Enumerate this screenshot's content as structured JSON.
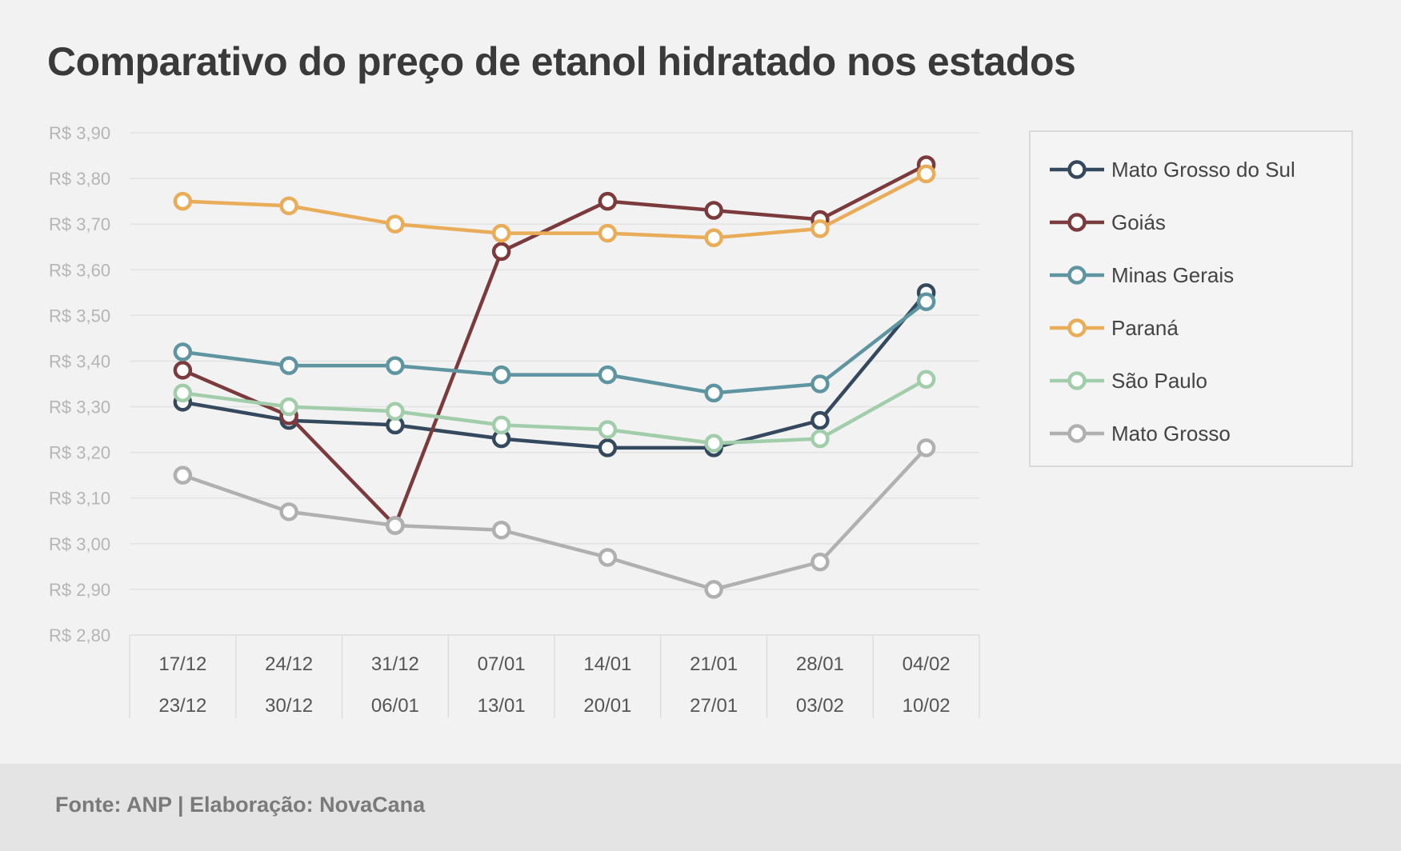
{
  "chart_data": {
    "type": "line",
    "title": "Comparativo do preço de etanol hidratado nos estados",
    "xlabel": "",
    "ylabel": "",
    "categories": [
      [
        "17/12",
        "23/12"
      ],
      [
        "24/12",
        "30/12"
      ],
      [
        "31/12",
        "06/01"
      ],
      [
        "07/01",
        "13/01"
      ],
      [
        "14/01",
        "20/01"
      ],
      [
        "21/01",
        "27/01"
      ],
      [
        "28/01",
        "03/02"
      ],
      [
        "04/02",
        "10/02"
      ]
    ],
    "ylim": [
      2.8,
      3.9
    ],
    "yticks": [
      "R$ 3,90",
      "R$ 3,80",
      "R$ 3,70",
      "R$ 3,60",
      "R$ 3,50",
      "R$ 3,40",
      "R$ 3,30",
      "R$ 3,20",
      "R$ 3,10",
      "R$ 3,00",
      "R$ 2,90",
      "R$ 2,80"
    ],
    "grid": true,
    "legend_position": "right",
    "series": [
      {
        "name": "Mato Grosso do Sul",
        "color": "#34495e",
        "values": [
          3.31,
          3.27,
          3.26,
          3.23,
          3.21,
          3.21,
          3.27,
          3.55
        ]
      },
      {
        "name": "Goiás",
        "color": "#7b3a3b",
        "values": [
          3.38,
          3.28,
          3.04,
          3.64,
          3.75,
          3.73,
          3.71,
          3.83
        ]
      },
      {
        "name": "Minas Gerais",
        "color": "#5e95a0",
        "values": [
          3.42,
          3.39,
          3.39,
          3.37,
          3.37,
          3.33,
          3.35,
          3.53
        ]
      },
      {
        "name": "Paraná",
        "color": "#e9ac59",
        "values": [
          3.75,
          3.74,
          3.7,
          3.68,
          3.68,
          3.67,
          3.69,
          3.81
        ]
      },
      {
        "name": "São Paulo",
        "color": "#a2cdaa",
        "values": [
          3.33,
          3.3,
          3.29,
          3.26,
          3.25,
          3.22,
          3.23,
          3.36
        ]
      },
      {
        "name": "Mato Grosso",
        "color": "#b0b0b0",
        "values": [
          3.15,
          3.07,
          3.04,
          3.03,
          2.97,
          2.9,
          2.96,
          3.21
        ]
      }
    ]
  },
  "footer": {
    "source": "Fonte: ANP | Elaboração: NovaCana"
  }
}
